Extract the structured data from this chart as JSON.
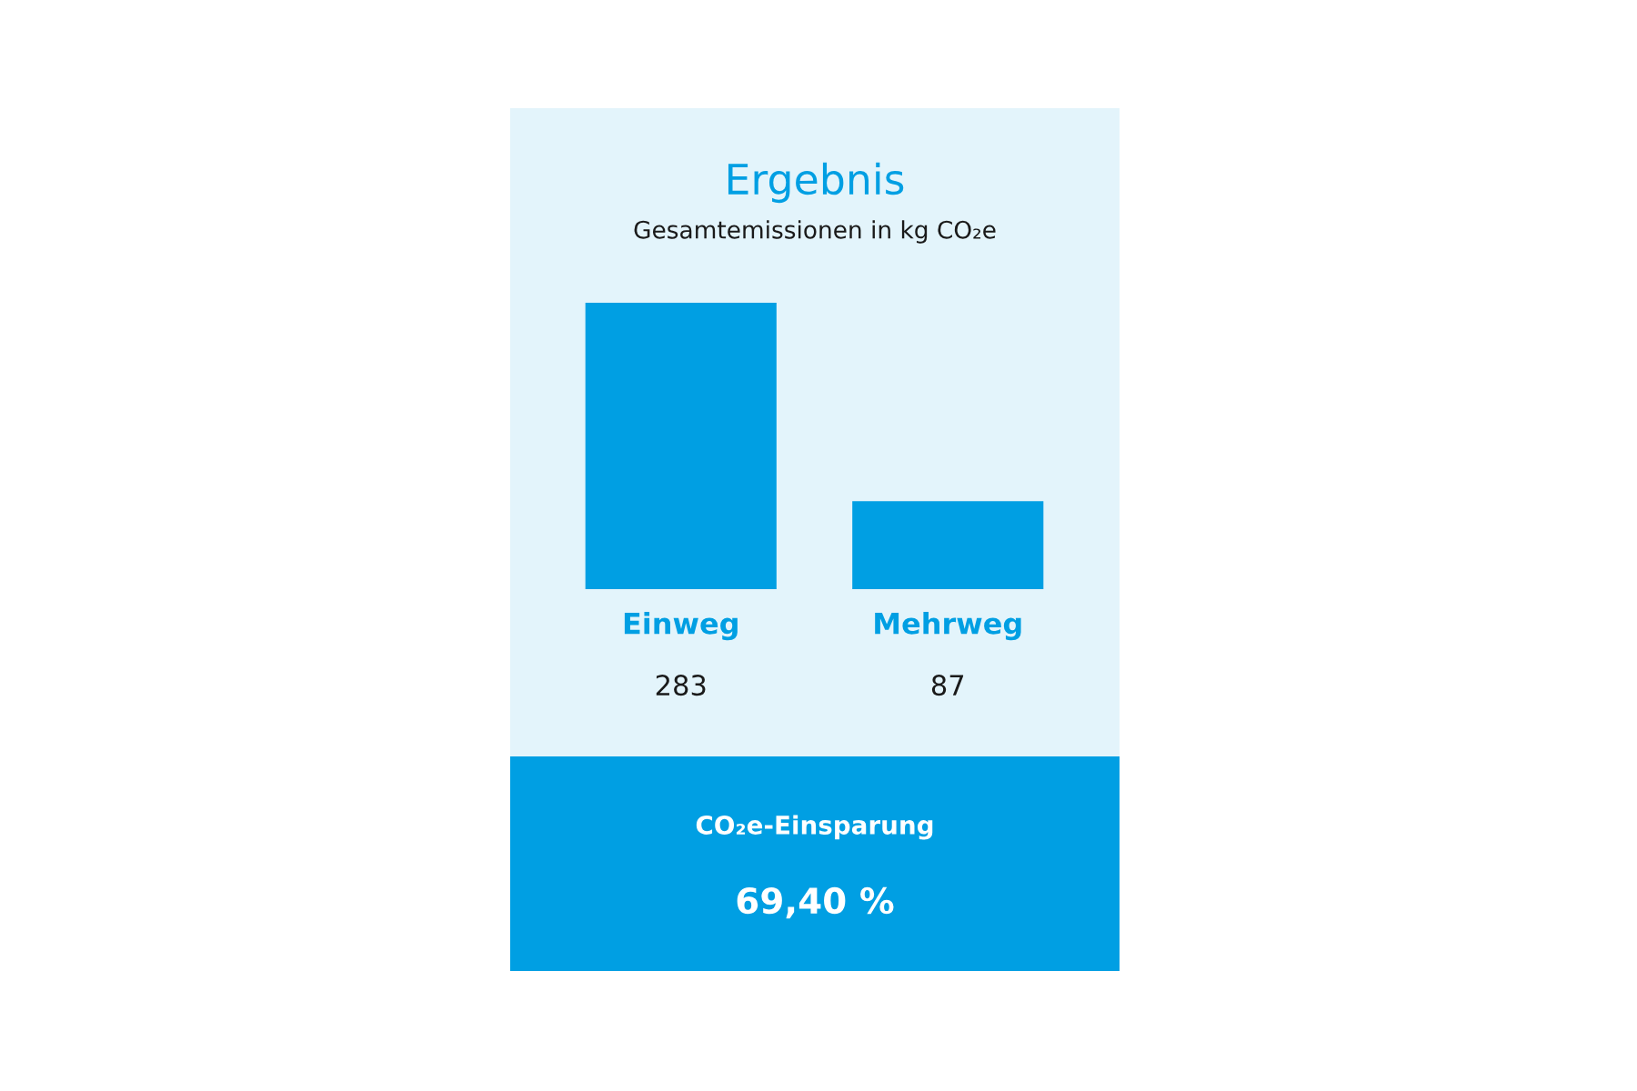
{
  "chart_data": {
    "type": "bar",
    "title": "Ergebnis",
    "subtitle": "Gesamtemissionen in kg CO₂e",
    "categories": [
      "Einweg",
      "Mehrweg"
    ],
    "values": [
      283,
      87
    ],
    "color": "#009fe3",
    "data_labels": true,
    "tick_labels": "x",
    "annotations": [
      "CO₂e-Einsparung",
      "69,40 %"
    ]
  }
}
